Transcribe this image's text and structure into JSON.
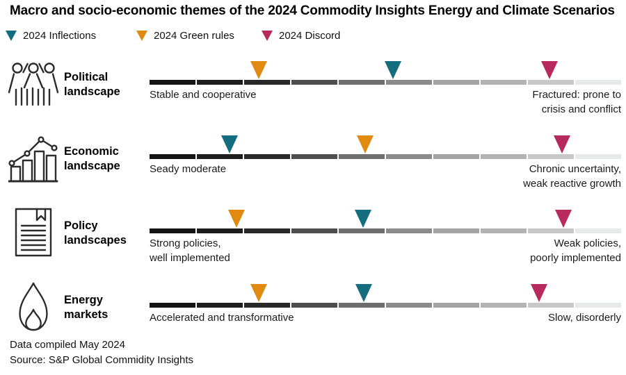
{
  "title": "Macro and socio-economic themes of the 2024 Commodity Insights Energy and Climate Scenarios",
  "legend": [
    {
      "id": "inflections",
      "label": "2024 Inflections",
      "color": "#156d80"
    },
    {
      "id": "green_rules",
      "label": "2024 Green rules",
      "color": "#e08a12"
    },
    {
      "id": "discord",
      "label": "2024 Discord",
      "color": "#b92a5c"
    }
  ],
  "scale_colors": [
    "#141414",
    "#1d1d1d",
    "#282828",
    "#4d4d4d",
    "#6e6e6e",
    "#8b8b8b",
    "#a4a4a4",
    "#b3b3b3",
    "#c8c8c8",
    "#e7e9ea"
  ],
  "rows": [
    {
      "icon": "crowd-icon",
      "label": "Political\nlandscape",
      "left_label": "Stable and cooperative",
      "right_label": "Fractured: prone to\ncrisis and conflict",
      "markers": [
        {
          "series": "2024 Green rules",
          "color": "#e08a12",
          "position_pct": 23.2
        },
        {
          "series": "2024 Inflections",
          "color": "#156d80",
          "position_pct": 51.6
        },
        {
          "series": "2024 Discord",
          "color": "#b92a5c",
          "position_pct": 84.8
        }
      ]
    },
    {
      "icon": "bar-chart-icon",
      "label": "Economic\nlandscape",
      "left_label": "Seady moderate",
      "right_label": "Chronic uncertainty,\nweak reactive growth",
      "markers": [
        {
          "series": "2024 Inflections",
          "color": "#156d80",
          "position_pct": 17.0
        },
        {
          "series": "2024 Green rules",
          "color": "#e08a12",
          "position_pct": 45.7
        },
        {
          "series": "2024 Discord",
          "color": "#b92a5c",
          "position_pct": 87.5
        }
      ]
    },
    {
      "icon": "document-icon",
      "label": "Policy\nlandscapes",
      "left_label": "Strong policies,\nwell implemented",
      "right_label": "Weak policies,\npoorly implemented",
      "markers": [
        {
          "series": "2024 Green rules",
          "color": "#e08a12",
          "position_pct": 18.4
        },
        {
          "series": "2024 Inflections",
          "color": "#156d80",
          "position_pct": 45.3
        },
        {
          "series": "2024 Discord",
          "color": "#b92a5c",
          "position_pct": 87.8
        }
      ]
    },
    {
      "icon": "flame-icon",
      "label": "Energy\nmarkets",
      "left_label": "Accelerated and transformative",
      "right_label": "Slow, disorderly",
      "markers": [
        {
          "series": "2024 Green rules",
          "color": "#e08a12",
          "position_pct": 23.2
        },
        {
          "series": "2024 Inflections",
          "color": "#156d80",
          "position_pct": 45.4
        },
        {
          "series": "2024 Discord",
          "color": "#b92a5c",
          "position_pct": 82.6
        }
      ]
    }
  ],
  "footer": {
    "line1": "Data compiled May 2024",
    "line2": "Source: S&P Global Commidity Insights"
  },
  "chart_data": {
    "type": "scatter",
    "title": "Macro and socio-economic themes of the 2024 Commodity Insights Energy and Climate Scenarios",
    "description": "Each theme is a qualitative gradient scale from 0 (left, dark end) to 1 (right, light end); markers show where each 2024 scenario sits.",
    "categories": [
      "Political landscape",
      "Economic landscape",
      "Policy landscapes",
      "Energy markets"
    ],
    "series": [
      {
        "name": "2024 Inflections",
        "color": "#156d80",
        "values": [
          0.52,
          0.17,
          0.45,
          0.45
        ]
      },
      {
        "name": "2024 Green rules",
        "color": "#e08a12",
        "values": [
          0.23,
          0.46,
          0.18,
          0.23
        ]
      },
      {
        "name": "2024 Discord",
        "color": "#b92a5c",
        "values": [
          0.85,
          0.88,
          0.88,
          0.83
        ]
      }
    ],
    "scale_endpoints": [
      {
        "category": "Political landscape",
        "left": "Stable and cooperative",
        "right": "Fractured: prone to crisis and conflict"
      },
      {
        "category": "Economic landscape",
        "left": "Seady moderate",
        "right": "Chronic uncertainty, weak reactive growth"
      },
      {
        "category": "Policy landscapes",
        "left": "Strong policies, well implemented",
        "right": "Weak policies, poorly implemented"
      },
      {
        "category": "Energy markets",
        "left": "Accelerated and transformative",
        "right": "Slow, disorderly"
      }
    ],
    "xlim": [
      0,
      1
    ],
    "legend_position": "top",
    "grid": false
  }
}
